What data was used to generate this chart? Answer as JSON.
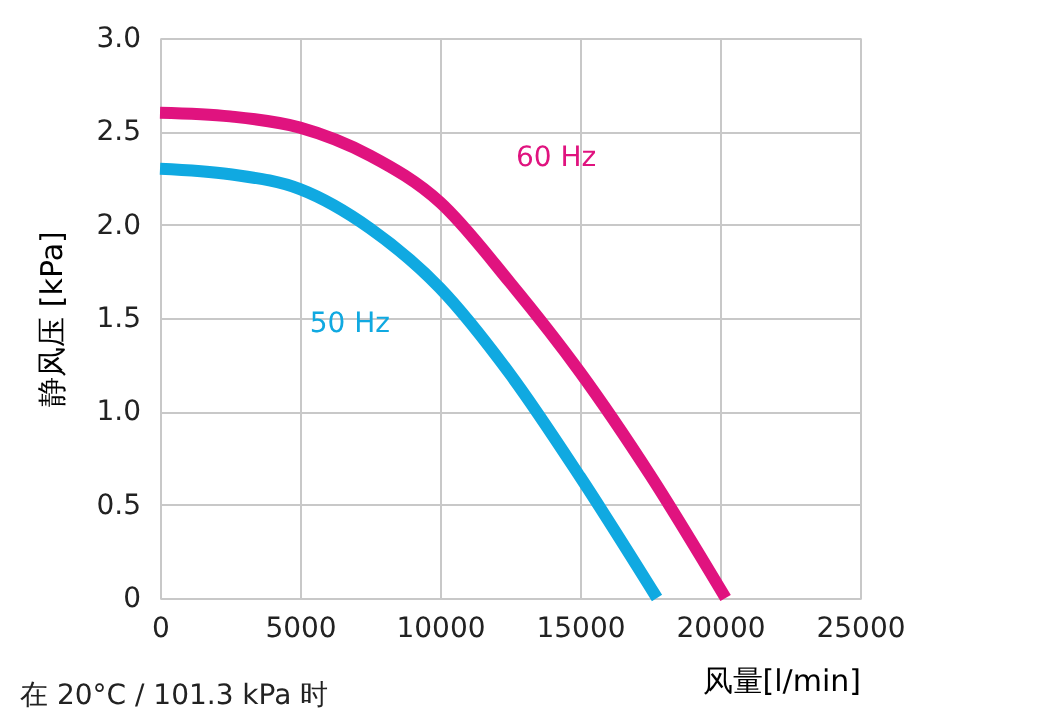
{
  "chart_data": {
    "type": "line",
    "xlabel": "风量[l/min]",
    "ylabel": "静风压 [kPa]",
    "x": [
      0,
      2500,
      5000,
      7500,
      10000,
      12500,
      15000,
      17500,
      20200
    ],
    "series": [
      {
        "name": "60 Hz",
        "color": "#e0137f",
        "values": [
          2.6,
          2.58,
          2.52,
          2.37,
          2.12,
          1.69,
          1.21,
          0.66,
          0
        ]
      },
      {
        "name": "50 Hz",
        "color": "#10a9e1",
        "x": [
          0,
          2500,
          5000,
          7500,
          10000,
          12500,
          15000,
          17750
        ],
        "values": [
          2.3,
          2.27,
          2.19,
          1.98,
          1.66,
          1.2,
          0.65,
          0
        ]
      }
    ],
    "xlim": [
      0,
      25000
    ],
    "xticks": [
      0,
      5000,
      10000,
      15000,
      20000,
      25000
    ],
    "ylim": [
      0,
      3.0
    ],
    "yticks": [
      {
        "value": 0,
        "label": "0"
      },
      {
        "value": 0.5,
        "label": "0.5"
      },
      {
        "value": 1.0,
        "label": "1.0"
      },
      {
        "value": 1.5,
        "label": "1.5"
      },
      {
        "value": 2.0,
        "label": "2.0"
      },
      {
        "value": 2.5,
        "label": "2.5"
      },
      {
        "value": 3.0,
        "label": "3.0"
      }
    ],
    "grid": true,
    "legend": false,
    "marker": "none",
    "line_style": "solid",
    "annotations": [
      "在 20°C / 101.3 kPa 时"
    ]
  }
}
